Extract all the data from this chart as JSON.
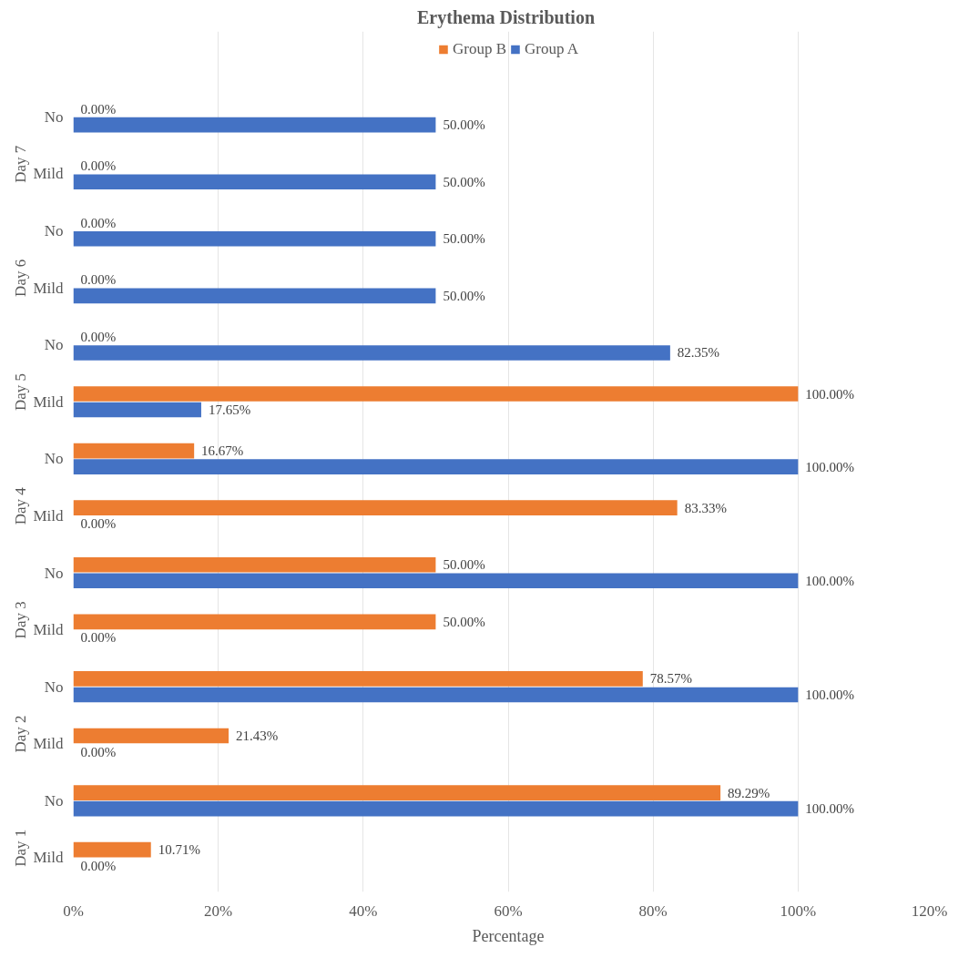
{
  "chart_data": {
    "type": "bar",
    "orientation": "horizontal",
    "title": "Erythema  Distribution",
    "xlabel": "Percentage",
    "categories": [
      "No",
      "Mild",
      "No",
      "Mild",
      "No",
      "Mild",
      "No",
      "Mild",
      "No",
      "Mild",
      "No",
      "Mild",
      "No",
      "Mild"
    ],
    "annotations": [
      "Day 7",
      "Day 6",
      "Day 5",
      "Day 4",
      "Day 3",
      "Day 2",
      "Day 1"
    ],
    "series": [
      {
        "name": "Group B",
        "color": "#ed7d31",
        "values": [
          0,
          0,
          0,
          0,
          0,
          100,
          16.67,
          83.33,
          50,
          50,
          78.57,
          21.43,
          89.29,
          10.71
        ],
        "value_labels": [
          "0.00%",
          "0.00%",
          "0.00%",
          "0.00%",
          "0.00%",
          "100.00%",
          "16.67%",
          "83.33%",
          "50.00%",
          "50.00%",
          "78.57%",
          "21.43%",
          "89.29%",
          "10.71%"
        ]
      },
      {
        "name": "Group A",
        "color": "#4472c4",
        "values": [
          50,
          50,
          50,
          50,
          82.35,
          17.65,
          100,
          0,
          100,
          0,
          100,
          0,
          100,
          0
        ],
        "value_labels": [
          "50.00%",
          "50.00%",
          "50.00%",
          "50.00%",
          "82.35%",
          "17.65%",
          "100.00%",
          "0.00%",
          "100.00%",
          "0.00%",
          "100.00%",
          "0.00%",
          "100.00%",
          "0.00%"
        ]
      }
    ],
    "xlim": [
      0,
      120
    ],
    "xticks": [
      {
        "value": 0,
        "label": "0%"
      },
      {
        "value": 20,
        "label": "20%"
      },
      {
        "value": 40,
        "label": "40%"
      },
      {
        "value": 60,
        "label": "60%"
      },
      {
        "value": 80,
        "label": "80%"
      },
      {
        "value": 100,
        "label": "100%"
      },
      {
        "value": 120,
        "label": "120%"
      }
    ],
    "grid": "x",
    "legend": "top"
  }
}
